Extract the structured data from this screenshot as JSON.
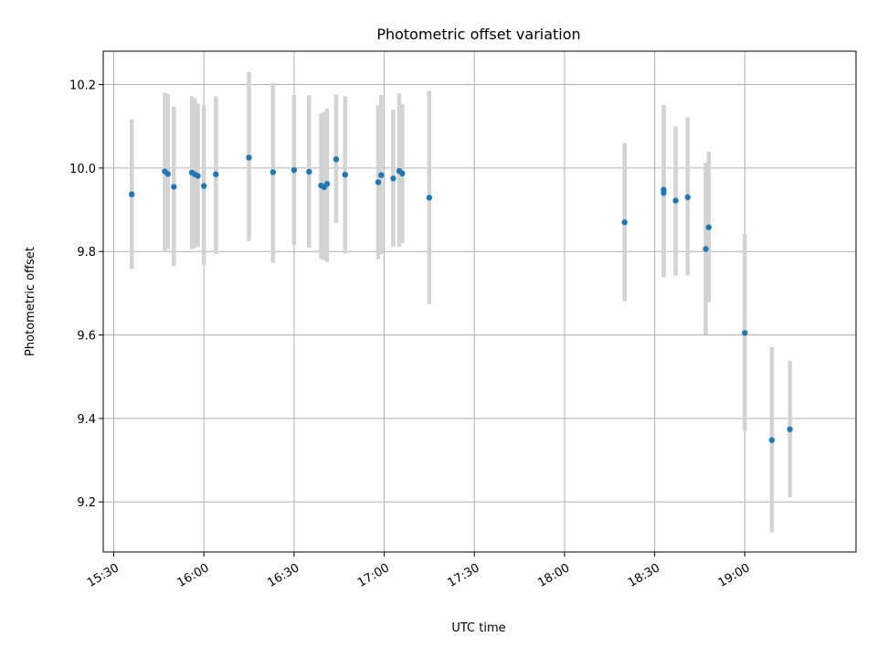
{
  "chart_data": {
    "type": "scatter",
    "title": "Photometric offset variation",
    "xlabel": "UTC time",
    "ylabel": "Photometric offset",
    "xlim": [
      "15:30",
      "19:30"
    ],
    "ylim": [
      9.08,
      10.28
    ],
    "x_ticks": [
      "15:30",
      "16:00",
      "16:30",
      "17:00",
      "17:30",
      "18:00",
      "18:30",
      "19:00"
    ],
    "y_ticks": [
      9.2,
      9.4,
      9.6,
      9.8,
      10.0,
      10.2
    ],
    "grid": true,
    "colors": {
      "points": "#1f77b4",
      "errorbars": "#d3d3d3"
    },
    "points": [
      {
        "x": "15:36",
        "y": 9.937,
        "ylo": 9.758,
        "yhi": 10.117
      },
      {
        "x": "15:47",
        "y": 9.992,
        "ylo": 9.8,
        "yhi": 10.18
      },
      {
        "x": "15:48",
        "y": 9.986,
        "ylo": 9.806,
        "yhi": 10.177
      },
      {
        "x": "15:50",
        "y": 9.955,
        "ylo": 9.765,
        "yhi": 10.147
      },
      {
        "x": "15:56",
        "y": 9.989,
        "ylo": 9.806,
        "yhi": 10.172
      },
      {
        "x": "15:57",
        "y": 9.985,
        "ylo": 9.808,
        "yhi": 10.167
      },
      {
        "x": "15:58",
        "y": 9.981,
        "ylo": 9.812,
        "yhi": 10.154
      },
      {
        "x": "16:00",
        "y": 9.957,
        "ylo": 9.768,
        "yhi": 10.15
      },
      {
        "x": "16:04",
        "y": 9.985,
        "ylo": 9.794,
        "yhi": 10.172
      },
      {
        "x": "16:15",
        "y": 10.025,
        "ylo": 9.825,
        "yhi": 10.23
      },
      {
        "x": "16:23",
        "y": 9.99,
        "ylo": 9.773,
        "yhi": 10.203
      },
      {
        "x": "16:30",
        "y": 9.995,
        "ylo": 9.815,
        "yhi": 10.175
      },
      {
        "x": "16:35",
        "y": 9.991,
        "ylo": 9.809,
        "yhi": 10.174
      },
      {
        "x": "16:39",
        "y": 9.958,
        "ylo": 9.782,
        "yhi": 10.131
      },
      {
        "x": "16:40",
        "y": 9.954,
        "ylo": 9.78,
        "yhi": 10.135
      },
      {
        "x": "16:41",
        "y": 9.962,
        "ylo": 9.775,
        "yhi": 10.143
      },
      {
        "x": "16:44",
        "y": 10.021,
        "ylo": 9.868,
        "yhi": 10.176
      },
      {
        "x": "16:47",
        "y": 9.984,
        "ylo": 9.795,
        "yhi": 10.172
      },
      {
        "x": "16:58",
        "y": 9.966,
        "ylo": 9.782,
        "yhi": 10.15
      },
      {
        "x": "16:59",
        "y": 9.983,
        "ylo": 9.794,
        "yhi": 10.175
      },
      {
        "x": "17:03",
        "y": 9.975,
        "ylo": 9.811,
        "yhi": 10.14
      },
      {
        "x": "17:05",
        "y": 9.993,
        "ylo": 9.811,
        "yhi": 10.179
      },
      {
        "x": "17:06",
        "y": 9.987,
        "ylo": 9.82,
        "yhi": 10.153
      },
      {
        "x": "17:15",
        "y": 9.929,
        "ylo": 9.674,
        "yhi": 10.185
      },
      {
        "x": "18:20",
        "y": 9.87,
        "ylo": 9.681,
        "yhi": 10.06
      },
      {
        "x": "18:33",
        "y": 9.948,
        "ylo": 9.738,
        "yhi": 10.151
      },
      {
        "x": "18:33",
        "y": 9.94,
        "ylo": 9.74,
        "yhi": 10.14
      },
      {
        "x": "18:37",
        "y": 9.922,
        "ylo": 9.742,
        "yhi": 10.1
      },
      {
        "x": "18:41",
        "y": 9.93,
        "ylo": 9.742,
        "yhi": 10.121
      },
      {
        "x": "18:47",
        "y": 9.806,
        "ylo": 9.601,
        "yhi": 10.012
      },
      {
        "x": "18:48",
        "y": 9.858,
        "ylo": 9.679,
        "yhi": 10.039
      },
      {
        "x": "19:00",
        "y": 9.605,
        "ylo": 9.37,
        "yhi": 9.843
      },
      {
        "x": "19:09",
        "y": 9.348,
        "ylo": 9.127,
        "yhi": 9.571
      },
      {
        "x": "19:15",
        "y": 9.374,
        "ylo": 9.211,
        "yhi": 9.538
      }
    ]
  }
}
